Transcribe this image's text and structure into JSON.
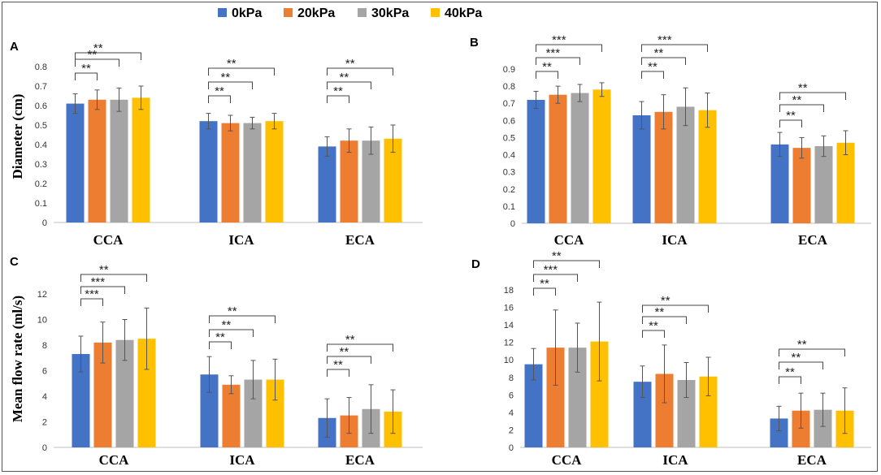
{
  "legend": [
    {
      "label": "0kPa",
      "color": "#4472C4"
    },
    {
      "label": "20kPa",
      "color": "#ED7D31"
    },
    {
      "label": "30kPa",
      "color": "#A5A5A5"
    },
    {
      "label": "40kPa",
      "color": "#FFC000"
    }
  ],
  "chart_data": [
    {
      "panel": "A",
      "type": "bar",
      "ylabel": "Diameter (cm)",
      "ylim": [
        0,
        0.8
      ],
      "yticks": [
        "0",
        "0.1",
        "0.2",
        "0.3",
        "0.4",
        "0.5",
        "0.6",
        "0.7",
        "0.8"
      ],
      "categories": [
        "CCA",
        "ICA",
        "ECA"
      ],
      "series": [
        {
          "name": "0kPa",
          "values": [
            0.61,
            0.52,
            0.39
          ],
          "errors": [
            0.05,
            0.04,
            0.05
          ]
        },
        {
          "name": "20kPa",
          "values": [
            0.63,
            0.51,
            0.42
          ],
          "errors": [
            0.05,
            0.04,
            0.06
          ]
        },
        {
          "name": "30kPa",
          "values": [
            0.63,
            0.51,
            0.42
          ],
          "errors": [
            0.06,
            0.03,
            0.07
          ]
        },
        {
          "name": "40kPa",
          "values": [
            0.64,
            0.52,
            0.43
          ],
          "errors": [
            0.06,
            0.04,
            0.07
          ]
        }
      ],
      "significance": [
        [
          {
            "to": "20kPa",
            "label": "**"
          },
          {
            "to": "30kPa",
            "label": "**"
          },
          {
            "to": "40kPa",
            "label": "**"
          }
        ],
        [
          {
            "to": "20kPa",
            "label": "**"
          },
          {
            "to": "30kPa",
            "label": "**"
          },
          {
            "to": "40kPa",
            "label": "**"
          }
        ],
        [
          {
            "to": "20kPa",
            "label": "**"
          },
          {
            "to": "30kPa",
            "label": "**"
          },
          {
            "to": "40kPa",
            "label": "**"
          }
        ]
      ]
    },
    {
      "panel": "B",
      "type": "bar",
      "ylabel": "",
      "ylim": [
        0,
        0.9
      ],
      "yticks": [
        "0",
        "0.1",
        "0.2",
        "0.3",
        "0.4",
        "0.5",
        "0.6",
        "0.7",
        "0.8",
        "0.9"
      ],
      "categories": [
        "CCA",
        "ICA",
        "ECA"
      ],
      "series": [
        {
          "name": "0kPa",
          "values": [
            0.72,
            0.63,
            0.46
          ],
          "errors": [
            0.05,
            0.08,
            0.07
          ]
        },
        {
          "name": "20kPa",
          "values": [
            0.75,
            0.65,
            0.44
          ],
          "errors": [
            0.05,
            0.1,
            0.06
          ]
        },
        {
          "name": "30kPa",
          "values": [
            0.76,
            0.68,
            0.45
          ],
          "errors": [
            0.05,
            0.11,
            0.06
          ]
        },
        {
          "name": "40kPa",
          "values": [
            0.78,
            0.66,
            0.47
          ],
          "errors": [
            0.04,
            0.1,
            0.07
          ]
        }
      ],
      "significance": [
        [
          {
            "to": "20kPa",
            "label": "**"
          },
          {
            "to": "30kPa",
            "label": "***"
          },
          {
            "to": "40kPa",
            "label": "***"
          }
        ],
        [
          {
            "to": "20kPa",
            "label": "**"
          },
          {
            "to": "30kPa",
            "label": "**"
          },
          {
            "to": "40kPa",
            "label": "***"
          }
        ],
        [
          {
            "to": "20kPa",
            "label": "**"
          },
          {
            "to": "30kPa",
            "label": "**"
          },
          {
            "to": "40kPa",
            "label": "**"
          }
        ]
      ]
    },
    {
      "panel": "C",
      "type": "bar",
      "ylabel": "Mean flow rate (ml/s)",
      "ylim": [
        0,
        12
      ],
      "yticks": [
        "0",
        "2",
        "4",
        "6",
        "8",
        "10",
        "12"
      ],
      "categories": [
        "CCA",
        "ICA",
        "ECA"
      ],
      "series": [
        {
          "name": "0kPa",
          "values": [
            7.3,
            5.7,
            2.3
          ],
          "errors": [
            1.4,
            1.4,
            1.5
          ]
        },
        {
          "name": "20kPa",
          "values": [
            8.2,
            4.9,
            2.5
          ],
          "errors": [
            1.6,
            0.7,
            1.4
          ]
        },
        {
          "name": "30kPa",
          "values": [
            8.4,
            5.3,
            3.0
          ],
          "errors": [
            1.6,
            1.5,
            1.9
          ]
        },
        {
          "name": "40kPa",
          "values": [
            8.5,
            5.3,
            2.8
          ],
          "errors": [
            2.4,
            1.6,
            1.7
          ]
        }
      ],
      "significance": [
        [
          {
            "to": "20kPa",
            "label": "***"
          },
          {
            "to": "30kPa",
            "label": "***"
          },
          {
            "to": "40kPa",
            "label": "**"
          }
        ],
        [
          {
            "to": "20kPa",
            "label": "**"
          },
          {
            "to": "30kPa",
            "label": "**"
          },
          {
            "to": "40kPa",
            "label": "**"
          }
        ],
        [
          {
            "to": "20kPa",
            "label": "**"
          },
          {
            "to": "30kPa",
            "label": "**"
          },
          {
            "to": "40kPa",
            "label": "**"
          }
        ]
      ]
    },
    {
      "panel": "D",
      "type": "bar",
      "ylabel": "",
      "ylim": [
        0,
        18
      ],
      "yticks": [
        "0",
        "2",
        "4",
        "6",
        "8",
        "10",
        "12",
        "14",
        "16",
        "18"
      ],
      "categories": [
        "CCA",
        "ICA",
        "ECA"
      ],
      "series": [
        {
          "name": "0kPa",
          "values": [
            9.5,
            7.5,
            3.3
          ],
          "errors": [
            1.8,
            1.8,
            1.4
          ]
        },
        {
          "name": "20kPa",
          "values": [
            11.4,
            8.4,
            4.2
          ],
          "errors": [
            4.3,
            3.3,
            2.0
          ]
        },
        {
          "name": "30kPa",
          "values": [
            11.4,
            7.7,
            4.3
          ],
          "errors": [
            2.8,
            2.0,
            1.9
          ]
        },
        {
          "name": "40kPa",
          "values": [
            12.1,
            8.1,
            4.2
          ],
          "errors": [
            4.5,
            2.2,
            2.6
          ]
        }
      ],
      "significance": [
        [
          {
            "to": "20kPa",
            "label": "**"
          },
          {
            "to": "30kPa",
            "label": "***"
          },
          {
            "to": "40kPa",
            "label": "**"
          }
        ],
        [
          {
            "to": "20kPa",
            "label": "**"
          },
          {
            "to": "30kPa",
            "label": "**"
          },
          {
            "to": "40kPa",
            "label": "**"
          }
        ],
        [
          {
            "to": "20kPa",
            "label": "**"
          },
          {
            "to": "30kPa",
            "label": "**"
          },
          {
            "to": "40kPa",
            "label": "**"
          }
        ]
      ]
    }
  ]
}
